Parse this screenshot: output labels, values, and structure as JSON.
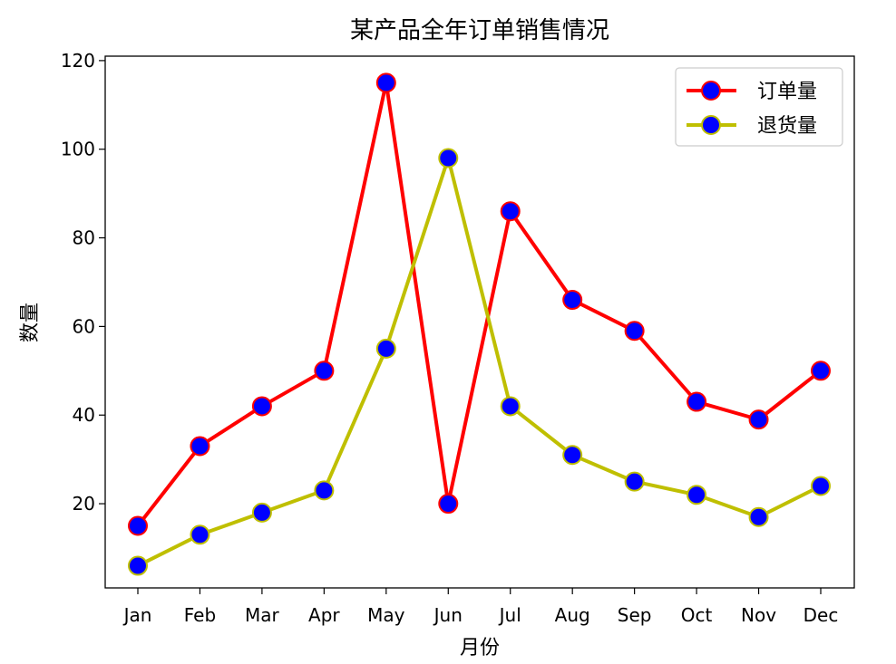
{
  "chart_data": {
    "type": "line",
    "title": "某产品全年订单销售情况",
    "xlabel": "月份",
    "ylabel": "数量",
    "categories": [
      "Jan",
      "Feb",
      "Mar",
      "Apr",
      "May",
      "Jun",
      "Jul",
      "Aug",
      "Sep",
      "Oct",
      "Nov",
      "Dec"
    ],
    "ylim": [
      1,
      121
    ],
    "yticks": [
      20,
      40,
      60,
      80,
      100,
      120
    ],
    "grid": false,
    "legend_position": "top-right",
    "series": [
      {
        "name": "订单量",
        "values": [
          15,
          33,
          42,
          50,
          115,
          20,
          86,
          66,
          59,
          43,
          39,
          50
        ],
        "line_color": "#ff0000",
        "marker_face": "#0000ff",
        "marker_edge": "#ff0000"
      },
      {
        "name": "退货量",
        "values": [
          6,
          13,
          18,
          23,
          55,
          98,
          42,
          31,
          25,
          22,
          17,
          24
        ],
        "line_color": "#bfbf00",
        "marker_face": "#0000ff",
        "marker_edge": "#bfbf00"
      }
    ]
  }
}
